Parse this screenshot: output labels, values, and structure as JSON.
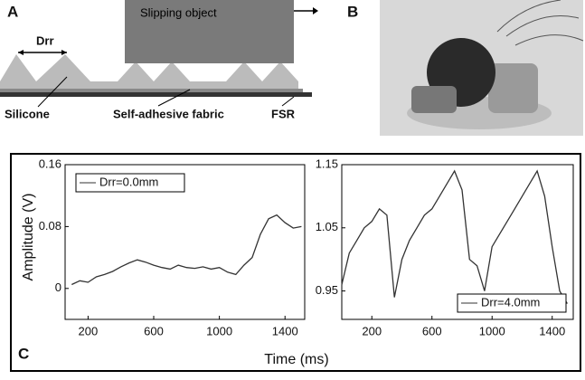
{
  "panel_labels": [
    "A",
    "B",
    "C"
  ],
  "diagram": {
    "drr": "Drr",
    "object": "Slipping object",
    "silicone": "Silicone",
    "fabric": "Self-adhesive fabric",
    "fsr": "FSR"
  },
  "chart_data": [
    {
      "type": "line",
      "ylabel": "Amplitude (V)",
      "xlabel": "Time (ms)",
      "x": [
        100,
        150,
        200,
        250,
        300,
        350,
        400,
        450,
        500,
        550,
        600,
        650,
        700,
        750,
        800,
        850,
        900,
        950,
        1000,
        1050,
        1100,
        1150,
        1200,
        1250,
        1300,
        1350,
        1400,
        1450,
        1500
      ],
      "series": [
        {
          "name": "Drr=0.0mm",
          "color": "#333333",
          "values": [
            0.005,
            0.01,
            0.008,
            0.015,
            0.018,
            0.022,
            0.028,
            0.033,
            0.037,
            0.034,
            0.03,
            0.027,
            0.025,
            0.03,
            0.027,
            0.026,
            0.028,
            0.025,
            0.027,
            0.021,
            0.018,
            0.03,
            0.04,
            0.07,
            0.09,
            0.095,
            0.085,
            0.078,
            0.08
          ]
        }
      ],
      "xlim": [
        60,
        1520
      ],
      "ylim": [
        -0.04,
        0.16
      ],
      "xticks": [
        200,
        600,
        1000,
        1400
      ],
      "yticks": [
        0,
        0.08,
        0.16
      ],
      "legend": "upper-left"
    },
    {
      "type": "line",
      "x": [
        0,
        50,
        100,
        150,
        200,
        250,
        300,
        350,
        400,
        450,
        500,
        550,
        600,
        650,
        700,
        750,
        800,
        850,
        900,
        950,
        1000,
        1050,
        1100,
        1150,
        1200,
        1250,
        1300,
        1350,
        1400,
        1450,
        1500
      ],
      "series": [
        {
          "name": "Drr=4.0mm",
          "color": "#333333",
          "values": [
            0.96,
            1.01,
            1.03,
            1.05,
            1.06,
            1.08,
            1.07,
            0.94,
            1.0,
            1.03,
            1.05,
            1.07,
            1.08,
            1.1,
            1.12,
            1.14,
            1.11,
            1.0,
            0.99,
            0.95,
            1.02,
            1.04,
            1.06,
            1.08,
            1.1,
            1.12,
            1.14,
            1.1,
            1.02,
            0.95,
            0.93
          ]
        }
      ],
      "xlim": [
        0,
        1540
      ],
      "ylim": [
        0.905,
        1.15
      ],
      "xticks": [
        200,
        600,
        1000,
        1400
      ],
      "yticks": [
        0.95,
        1.05,
        1.15
      ],
      "legend": "lower-right"
    }
  ]
}
